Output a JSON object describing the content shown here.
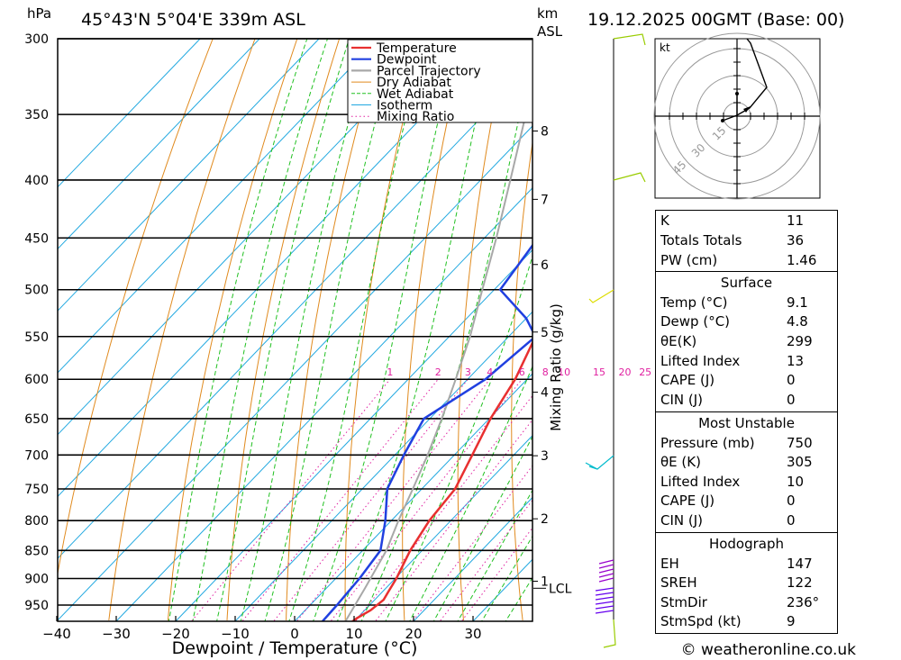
{
  "header": {
    "hpa_label": "hPa",
    "location": "45°43'N 5°04'E 339m ASL",
    "km_label": "km",
    "asl_label": "ASL",
    "datetime": "19.12.2025 00GMT (Base: 00)"
  },
  "chart_data": {
    "type": "line",
    "xlabel": "Dewpoint / Temperature (°C)",
    "y2label": "Mixing Ratio (g/kg)",
    "x_ticks": [
      -40,
      -30,
      -20,
      -10,
      0,
      10,
      20,
      30
    ],
    "pressure_levels": [
      300,
      350,
      400,
      450,
      500,
      550,
      600,
      650,
      700,
      750,
      800,
      850,
      900,
      950
    ],
    "km_ticks": [
      {
        "km": "8",
        "p": 362
      },
      {
        "km": "7",
        "p": 416
      },
      {
        "km": "6",
        "p": 475
      },
      {
        "km": "5",
        "p": 545
      },
      {
        "km": "4",
        "p": 616
      },
      {
        "km": "3",
        "p": 701
      },
      {
        "km": "2",
        "p": 797
      },
      {
        "km": "1",
        "p": 905
      }
    ],
    "lcl": {
      "label": "LCL",
      "p": 918
    },
    "mixing_ratio_labels": [
      "1",
      "2",
      "3",
      "4",
      "6",
      "8",
      "10",
      "15",
      "20",
      "25"
    ],
    "mixing_ratio_values": [
      1,
      2,
      3,
      4,
      6,
      8,
      10,
      15,
      20,
      25
    ],
    "legend": [
      "Temperature",
      "Dewpoint",
      "Parcel Trajectory",
      "Dry Adiabat",
      "Wet Adiabat",
      "Isotherm",
      "Mixing Ratio"
    ],
    "series": [
      {
        "name": "Temperature",
        "color": "#e83030",
        "points": [
          [
            1000,
            9.1
          ],
          [
            975,
            10.0
          ],
          [
            960,
            11.0
          ],
          [
            940,
            11.5
          ],
          [
            925,
            11.0
          ],
          [
            900,
            10.2
          ],
          [
            850,
            8.0
          ],
          [
            800,
            6.4
          ],
          [
            750,
            5.6
          ],
          [
            700,
            3.0
          ],
          [
            650,
            0.2
          ],
          [
            600,
            -2.0
          ],
          [
            550,
            -5.5
          ],
          [
            500,
            -9.5
          ],
          [
            450,
            -15.0
          ],
          [
            400,
            -20.5
          ],
          [
            375,
            -24.5
          ],
          [
            350,
            -30.0
          ],
          [
            325,
            -35.5
          ],
          [
            300,
            -41.5
          ]
        ]
      },
      {
        "name": "Dewpoint",
        "color": "#2040e0",
        "points": [
          [
            1000,
            4.8
          ],
          [
            950,
            4.5
          ],
          [
            900,
            4.0
          ],
          [
            850,
            3.0
          ],
          [
            800,
            -1.0
          ],
          [
            750,
            -5.8
          ],
          [
            700,
            -8.5
          ],
          [
            650,
            -11.0
          ],
          [
            600,
            -7.0
          ],
          [
            550,
            -5.5
          ],
          [
            530,
            -10.0
          ],
          [
            500,
            -19.0
          ],
          [
            450,
            -21.0
          ],
          [
            400,
            -28.0
          ],
          [
            350,
            -36.0
          ],
          [
            300,
            -43.0
          ]
        ]
      },
      {
        "name": "Parcel Trajectory",
        "color": "#a8a8a8",
        "points": [
          [
            1000,
            9.1
          ],
          [
            918,
            6.5
          ],
          [
            850,
            4.0
          ],
          [
            800,
            1.2
          ],
          [
            750,
            -1.5
          ],
          [
            700,
            -4.5
          ],
          [
            650,
            -8.0
          ],
          [
            600,
            -12.0
          ],
          [
            550,
            -16.5
          ],
          [
            500,
            -22.0
          ],
          [
            450,
            -28.0
          ],
          [
            400,
            -35.0
          ],
          [
            350,
            -43.0
          ],
          [
            320,
            -48.5
          ]
        ]
      }
    ]
  },
  "hodograph": {
    "unit": "kt",
    "ring_labels": [
      "15",
      "30",
      "45"
    ]
  },
  "indices": {
    "rows_top": [
      {
        "k": "K",
        "v": "11"
      },
      {
        "k": "Totals Totals",
        "v": "36"
      },
      {
        "k": "PW (cm)",
        "v": "1.46"
      }
    ],
    "surface": {
      "title": "Surface",
      "rows": [
        {
          "k": "Temp (°C)",
          "v": "9.1"
        },
        {
          "k": "Dewp (°C)",
          "v": "4.8"
        },
        {
          "k": "θE(K)",
          "v": "299"
        },
        {
          "k": "Lifted Index",
          "v": "13"
        },
        {
          "k": "CAPE (J)",
          "v": "0"
        },
        {
          "k": "CIN (J)",
          "v": "0"
        }
      ]
    },
    "most_unstable": {
      "title": "Most Unstable",
      "rows": [
        {
          "k": "Pressure (mb)",
          "v": "750"
        },
        {
          "k": "θE (K)",
          "v": "305"
        },
        {
          "k": "Lifted Index",
          "v": "10"
        },
        {
          "k": "CAPE (J)",
          "v": "0"
        },
        {
          "k": "CIN (J)",
          "v": "0"
        }
      ]
    },
    "hodograph_box": {
      "title": "Hodograph",
      "rows": [
        {
          "k": "EH",
          "v": "147"
        },
        {
          "k": "SREH",
          "v": "122"
        },
        {
          "k": "StmDir",
          "v": "236°"
        },
        {
          "k": "StmSpd (kt)",
          "v": "9"
        }
      ]
    }
  },
  "footer": {
    "credit": "© weatheronline.co.uk"
  },
  "colors": {
    "temperature": "#e83030",
    "dewpoint": "#2040e0",
    "parcel": "#a8a8a8",
    "dry_adiabat": "#e08a1e",
    "wet_adiabat": "#20c020",
    "isotherm": "#20a8e0",
    "mixing_ratio": "#e020a0"
  }
}
